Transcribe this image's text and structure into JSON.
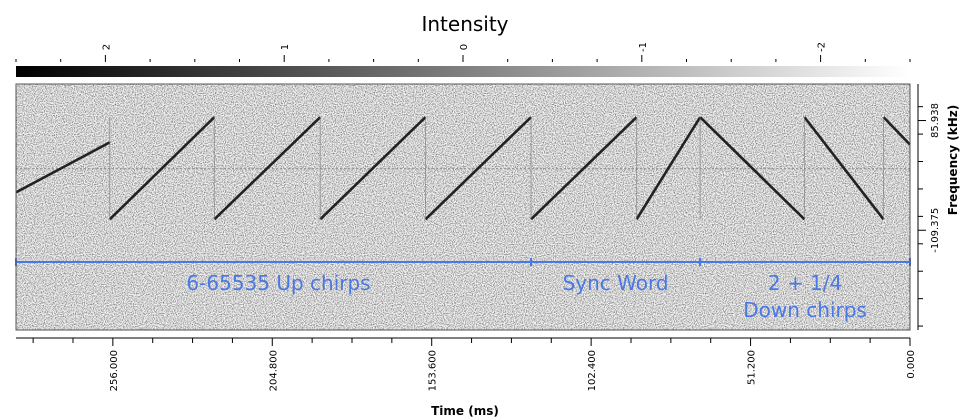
{
  "chart_data": {
    "type": "heatmap",
    "title": "Intensity",
    "colorbar": {
      "tick_labels": [
        "2",
        "1",
        "0",
        "-1",
        "-2"
      ],
      "tick_values": [
        2,
        1,
        0,
        -1,
        -2
      ],
      "range": [
        2.5,
        -2.5
      ],
      "colormap": "black-to-white"
    },
    "xlabel": "Time (ms)",
    "x_tick_labels": [
      "256.000",
      "204.800",
      "153.600",
      "102.400",
      "51.200",
      "0.000"
    ],
    "x_tick_values": [
      256.0,
      204.8,
      153.6,
      102.4,
      51.2,
      0.0
    ],
    "xlim": [
      287.1,
      0.0
    ],
    "ylabel": "Frequency (kHz)",
    "y_tick_labels": [
      "85.938",
      "-109.375"
    ],
    "y_tick_values": [
      85.938,
      -109.375
    ],
    "ylim": [
      -287.0,
      151.0
    ],
    "center_freq": 0,
    "chirps": [
      {
        "kind": "up",
        "t_start": 287.1,
        "t_end": 257.0,
        "f_start": -42,
        "f_end": 47,
        "partial": true
      },
      {
        "kind": "up",
        "t_start": 257.0,
        "t_end": 223.4,
        "f_start": -90,
        "f_end": 92
      },
      {
        "kind": "up",
        "t_start": 223.4,
        "t_end": 189.4,
        "f_start": -90,
        "f_end": 92
      },
      {
        "kind": "up",
        "t_start": 189.4,
        "t_end": 155.6,
        "f_start": -90,
        "f_end": 92
      },
      {
        "kind": "up",
        "t_start": 155.6,
        "t_end": 121.7,
        "f_start": -90,
        "f_end": 92
      },
      {
        "kind": "up",
        "t_start": 121.7,
        "t_end": 87.8,
        "f_start": -90,
        "f_end": 92
      },
      {
        "kind": "up",
        "t_start": 87.8,
        "t_end": 67.4,
        "f_start": -90,
        "f_end": 92,
        "partial": true
      },
      {
        "kind": "down",
        "t_start": 67.4,
        "t_end": 33.9,
        "f_start": 92,
        "f_end": -90
      },
      {
        "kind": "down",
        "t_start": 33.9,
        "t_end": 8.5,
        "f_start": 92,
        "f_end": -90
      },
      {
        "kind": "down",
        "t_start": 8.5,
        "t_end": 0.0,
        "f_start": 92,
        "f_end": 43,
        "partial": true
      }
    ],
    "annotations": {
      "color": "#4a78e6",
      "marker_freq": -166,
      "segments": [
        {
          "label": "6-65535 Up chirps",
          "t_start": 287.1,
          "t_end": 121.7
        },
        {
          "label": "Sync Word",
          "t_start": 121.7,
          "t_end": 67.4
        },
        {
          "label": "2 + 1/4",
          "label2": "Down chirps",
          "t_start": 67.4,
          "t_end": 0.0
        }
      ]
    }
  }
}
